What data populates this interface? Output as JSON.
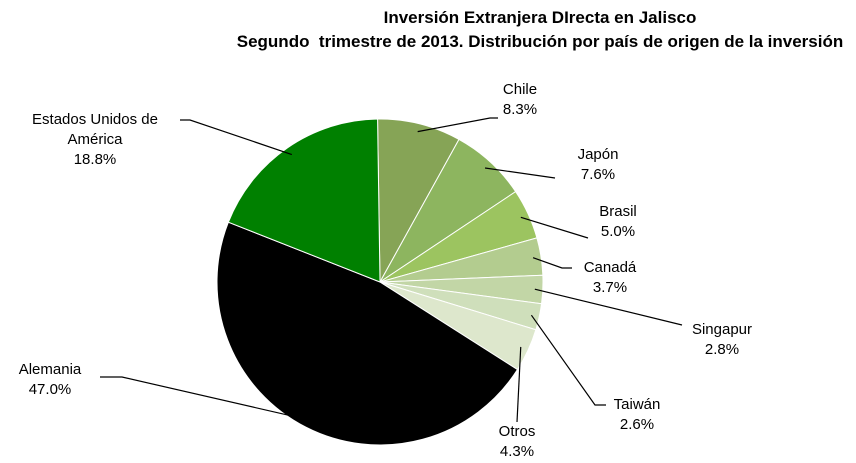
{
  "chart_data": {
    "type": "pie",
    "title": "Inversión Extranjera DIrecta en Jalisco",
    "subtitle": "Segundo  trimestre de 2013. Distribución por país de origen de la inversión",
    "categories": [
      "Chile",
      "Japón",
      "Brasil",
      "Canadá",
      "Singapur",
      "Taiwán",
      "Otros",
      "Alemania",
      "Estados Unidos de América"
    ],
    "values": [
      8.3,
      7.6,
      5.0,
      3.7,
      2.8,
      2.6,
      4.3,
      47.0,
      18.8
    ],
    "value_labels": [
      "8.3%",
      "7.6%",
      "5.0%",
      "3.7%",
      "2.8%",
      "2.6%",
      "4.3%",
      "47.0%",
      "18.8%"
    ],
    "colors": [
      "#86a456",
      "#8db55f",
      "#9cc460",
      "#b3cc8f",
      "#c2d6a6",
      "#cfdfbb",
      "#dde7cc",
      "#000000",
      "#008000"
    ]
  }
}
